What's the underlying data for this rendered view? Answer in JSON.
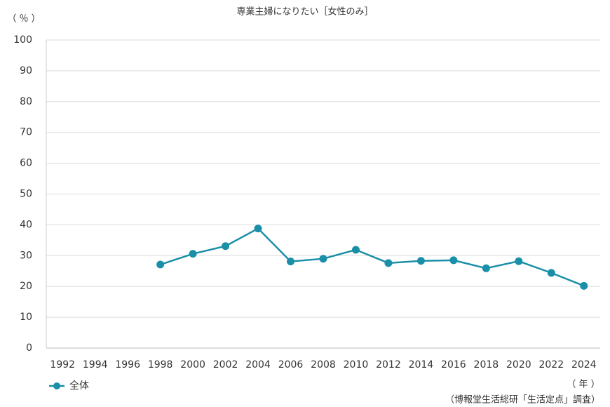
{
  "chart_data": {
    "type": "line",
    "title": "専業主婦になりたい［女性のみ］",
    "y_label": "（ ％ ）",
    "x_label": "（ 年 ）",
    "source": "（博報堂生活総研「生活定点」調査）",
    "categories": [
      "1992",
      "1994",
      "1996",
      "1998",
      "2000",
      "2002",
      "2004",
      "2006",
      "2008",
      "2010",
      "2012",
      "2014",
      "2016",
      "2018",
      "2020",
      "2022",
      "2024"
    ],
    "series": [
      {
        "name": "全体",
        "color": "#1a8fa8",
        "values": [
          null,
          null,
          null,
          27.1,
          30.6,
          33.1,
          38.8,
          28.1,
          29.0,
          31.9,
          27.6,
          28.3,
          28.5,
          25.9,
          28.2,
          24.4,
          20.2
        ]
      }
    ],
    "ylim": [
      0,
      100
    ],
    "yticks": [
      0,
      10,
      20,
      30,
      40,
      50,
      60,
      70,
      80,
      90,
      100
    ],
    "grid": true,
    "legend": "bottom-left"
  }
}
